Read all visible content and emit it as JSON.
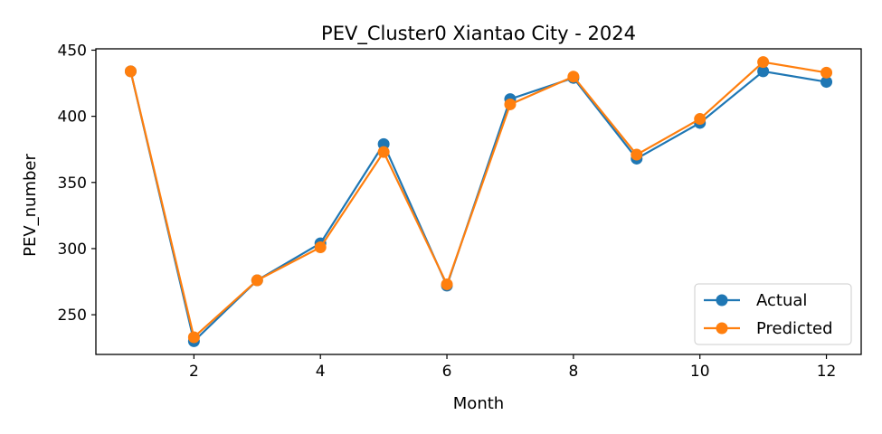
{
  "chart_data": {
    "type": "line",
    "title": "PEV_Cluster0 Xiantao City - 2024",
    "xlabel": "Month",
    "ylabel": "PEV_number",
    "xlim": [
      0.45,
      12.55
    ],
    "ylim": [
      220,
      451
    ],
    "xticks": [
      2,
      4,
      6,
      8,
      10,
      12
    ],
    "yticks": [
      250,
      300,
      350,
      400,
      450
    ],
    "grid": false,
    "legend_position": "lower-right",
    "x": [
      1,
      2,
      3,
      4,
      5,
      6,
      7,
      8,
      9,
      10,
      11,
      12
    ],
    "series": [
      {
        "name": "Actual",
        "color": "#1f77b4",
        "marker": "circle",
        "values": [
          434,
          230,
          276,
          304,
          379,
          272,
          413,
          429,
          368,
          395,
          434,
          426
        ]
      },
      {
        "name": "Predicted",
        "color": "#ff7f0e",
        "marker": "circle",
        "values": [
          434,
          233,
          276,
          301,
          373,
          273,
          409,
          430,
          371,
          398,
          441,
          433
        ]
      }
    ]
  }
}
